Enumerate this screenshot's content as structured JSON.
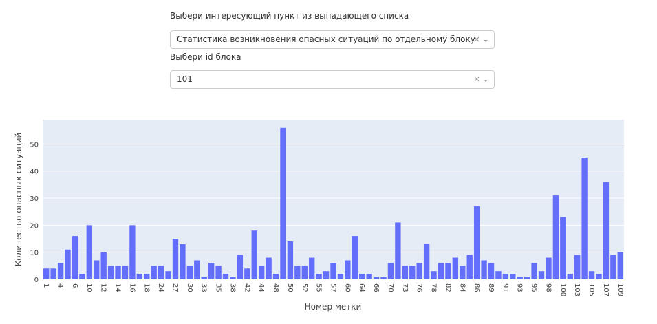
{
  "controls": [
    {
      "label": "Выбери интересующий пункт из выпадающего списка",
      "value": "Статистика возникновения опасных ситуаций по отдельному блоку"
    },
    {
      "label": "Выбери id блока",
      "value": "101"
    }
  ],
  "chart_data": {
    "type": "bar",
    "xlabel": "Номер метки",
    "ylabel": "Количество опасных ситуаций",
    "categories": [
      "1",
      null,
      "4",
      null,
      "6",
      null,
      "10",
      null,
      "12",
      null,
      "14",
      null,
      "16",
      null,
      "18",
      null,
      "24",
      null,
      "27",
      null,
      "30",
      null,
      "33",
      null,
      "35",
      null,
      "38",
      null,
      "42",
      null,
      "44",
      null,
      "48",
      null,
      "50",
      null,
      "52",
      null,
      "55",
      null,
      "57",
      null,
      "60",
      null,
      "64",
      null,
      "66",
      null,
      "70",
      null,
      "73",
      null,
      "76",
      null,
      "78",
      null,
      "82",
      null,
      "84",
      null,
      "86",
      null,
      "89",
      null,
      "91",
      null,
      "93",
      null,
      "95",
      null,
      "98",
      null,
      "100",
      null,
      "103",
      null,
      "105",
      null,
      "107",
      null,
      "109"
    ],
    "values": [
      4,
      4,
      6,
      11,
      16,
      2,
      20,
      7,
      10,
      5,
      5,
      5,
      20,
      2,
      2,
      5,
      5,
      3,
      15,
      13,
      5,
      7,
      1,
      6,
      5,
      2,
      1,
      9,
      4,
      18,
      5,
      8,
      2,
      56,
      14,
      5,
      5,
      8,
      2,
      3,
      6,
      2,
      7,
      16,
      2,
      2,
      1,
      1,
      6,
      21,
      5,
      5,
      6,
      13,
      3,
      6,
      6,
      8,
      5,
      9,
      27,
      7,
      6,
      3,
      2,
      2,
      1,
      1,
      6,
      3,
      8,
      31,
      23,
      2,
      9,
      45,
      3,
      2,
      36,
      9,
      10
    ],
    "color": "#636efa",
    "ylim": [
      0,
      59
    ],
    "yticks": [
      0,
      10,
      20,
      30,
      40,
      50
    ],
    "grid": true
  }
}
